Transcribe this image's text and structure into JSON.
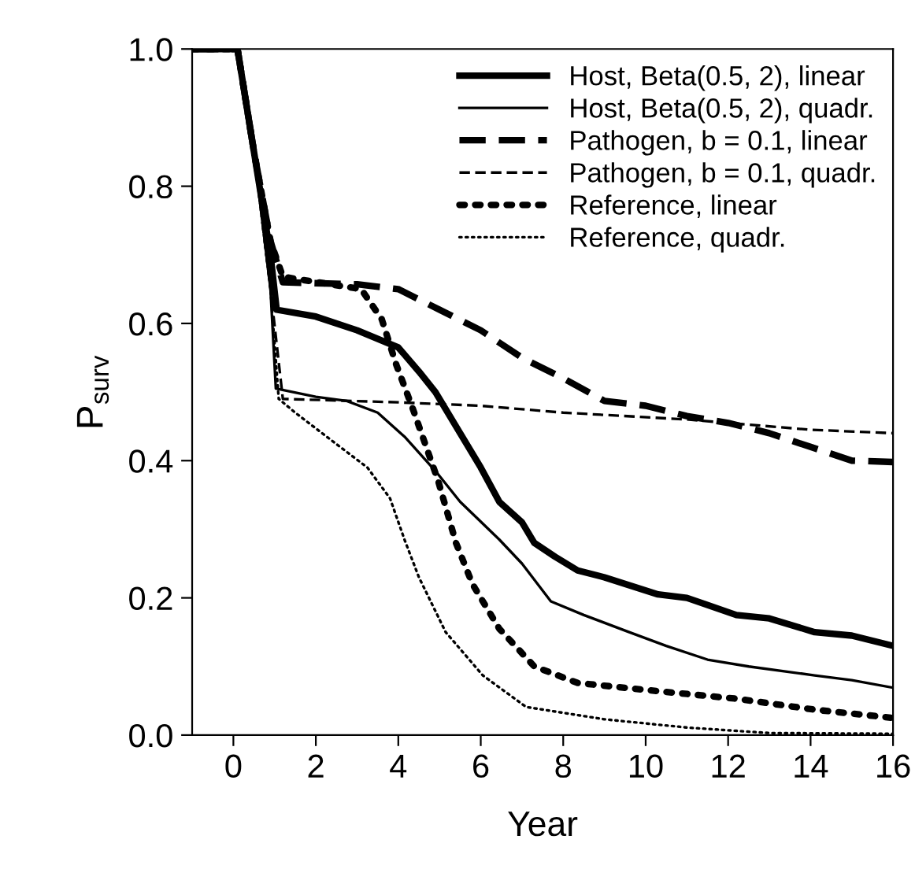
{
  "chart_data": {
    "type": "line",
    "xlabel": "Year",
    "ylabel": "P$_{surv}$",
    "xlim": [
      -1,
      16
    ],
    "xticks": [
      0,
      2,
      4,
      6,
      8,
      10,
      12,
      14,
      16
    ],
    "ylim": [
      0,
      1.0
    ],
    "yticks": [
      {
        "value": 0,
        "label": "0.0"
      },
      {
        "value": 0.2,
        "label": "0.2"
      },
      {
        "value": 0.4,
        "label": "0.4"
      },
      {
        "value": 0.6,
        "label": "0.6"
      },
      {
        "value": 0.8,
        "label": "0.8"
      },
      {
        "value": 1.0,
        "label": "1.0"
      }
    ],
    "grid": false,
    "legend": "top right",
    "series": [
      {
        "name": "Host, Beta(0.5, 2), linear",
        "color": "#000000",
        "line_style": "solid",
        "x": [
          -1,
          0.1,
          0.5,
          0.9,
          1.05,
          2,
          3,
          4,
          4.5,
          4.9,
          5.5,
          6,
          6.45,
          7,
          7.3,
          7.8,
          8.35,
          9,
          10.3,
          11,
          12.2,
          13,
          14.1,
          15,
          16
        ],
        "values": [
          1.0,
          1.0,
          0.85,
          0.7,
          0.62,
          0.61,
          0.59,
          0.565,
          0.53,
          0.5,
          0.44,
          0.39,
          0.34,
          0.31,
          0.28,
          0.26,
          0.24,
          0.23,
          0.205,
          0.2,
          0.175,
          0.17,
          0.15,
          0.145,
          0.13
        ]
      },
      {
        "name": "Host, Beta(0.5, 2), quadr.",
        "color": "#000000",
        "line_style": "solid",
        "x": [
          -1,
          0.1,
          0.5,
          0.9,
          1.03,
          2,
          2.75,
          3.5,
          4.15,
          4.9,
          5.5,
          6.45,
          7,
          7.7,
          8.5,
          9.6,
          10.5,
          11.5,
          12.5,
          14.1,
          15,
          16
        ],
        "values": [
          1.0,
          1.0,
          0.85,
          0.65,
          0.505,
          0.493,
          0.487,
          0.47,
          0.435,
          0.385,
          0.34,
          0.285,
          0.25,
          0.195,
          0.175,
          0.15,
          0.13,
          0.11,
          0.1,
          0.087,
          0.08,
          0.069
        ]
      },
      {
        "name": "Pathogen, b = 0.1, linear",
        "color": "#000000",
        "line_style": "dashed",
        "x": [
          -1,
          0.1,
          0.5,
          0.9,
          1.2,
          3,
          4,
          5,
          6,
          7,
          8,
          9,
          10,
          11,
          12,
          13,
          14,
          15,
          16
        ],
        "values": [
          1.0,
          1.0,
          0.85,
          0.72,
          0.66,
          0.657,
          0.65,
          0.62,
          0.59,
          0.55,
          0.52,
          0.487,
          0.48,
          0.465,
          0.455,
          0.44,
          0.42,
          0.4,
          0.398
        ]
      },
      {
        "name": "Pathogen, b = 0.1, quadr.",
        "color": "#000000",
        "line_style": "dashed",
        "x": [
          -1,
          0.1,
          0.5,
          0.9,
          1.2,
          4,
          6,
          8,
          11,
          12,
          14,
          16
        ],
        "values": [
          1.0,
          1.0,
          0.85,
          0.65,
          0.49,
          0.485,
          0.48,
          0.47,
          0.46,
          0.455,
          0.445,
          0.44
        ]
      },
      {
        "name": "Reference, linear",
        "color": "#000000",
        "line_style": "dotted",
        "x": [
          -1,
          0.1,
          0.5,
          0.9,
          1.2,
          3.1,
          3.6,
          3.95,
          4.35,
          4.97,
          5.4,
          5.8,
          6.45,
          7.3,
          8.35,
          10.3,
          12.2,
          14.1,
          16
        ],
        "values": [
          1.0,
          1.0,
          0.85,
          0.72,
          0.668,
          0.65,
          0.606,
          0.54,
          0.476,
          0.37,
          0.28,
          0.22,
          0.155,
          0.1,
          0.076,
          0.064,
          0.053,
          0.037,
          0.025
        ]
      },
      {
        "name": "Reference, quadr.",
        "color": "#000000",
        "line_style": "dotted",
        "x": [
          -1,
          0.1,
          0.5,
          0.9,
          1.1,
          1.5,
          2.37,
          3.25,
          3.8,
          4.15,
          4.5,
          5.15,
          6.05,
          7.1,
          9,
          11,
          13,
          16
        ],
        "values": [
          1.0,
          1.0,
          0.85,
          0.65,
          0.49,
          0.47,
          0.43,
          0.39,
          0.345,
          0.285,
          0.23,
          0.15,
          0.087,
          0.041,
          0.023,
          0.011,
          0.003,
          0.002
        ]
      }
    ]
  }
}
